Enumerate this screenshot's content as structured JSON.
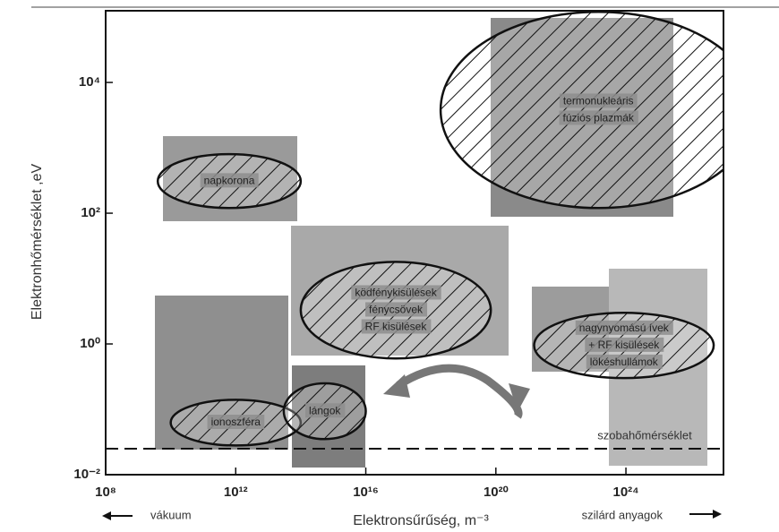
{
  "chart_data": {
    "type": "region",
    "x_label": "Elektronsűrűség, m⁻³",
    "y_label": "Elektronhőmérséklet ,eV",
    "x_log": true,
    "y_log": true,
    "xlim": [
      100000000,
      1e+27
    ],
    "ylim": [
      0.01,
      125000
    ],
    "xticks": [
      {
        "value": 100000000,
        "label": "10⁸"
      },
      {
        "value": 1000000000000,
        "label": "10¹²"
      },
      {
        "value": 1e+16,
        "label": "10¹⁶"
      },
      {
        "value": 1e+20,
        "label": "10²⁰"
      },
      {
        "value": 1e+24,
        "label": "10²⁴"
      }
    ],
    "yticks": [
      {
        "value": 0.01,
        "label": "10⁻²"
      },
      {
        "value": 1,
        "label": "10⁰"
      },
      {
        "value": 100,
        "label": "10²"
      },
      {
        "value": 10000,
        "label": "10⁴"
      }
    ],
    "regions": [
      {
        "lines": [
          "termonukleáris",
          "fúziós plazmák"
        ],
        "x": [
          2e+18,
          1e+28
        ],
        "y": [
          120,
          120000
        ]
      },
      {
        "lines": [
          "napkorona"
        ],
        "x": [
          4000000000,
          100000000000000
        ],
        "y": [
          120,
          800
        ]
      },
      {
        "lines": [
          "ködfénykisülések",
          "fénycsövek",
          "RF kisülések"
        ],
        "x": [
          100000000000000,
          7e+19
        ],
        "y": [
          0.6,
          18
        ]
      },
      {
        "lines": [
          "nagynyomású ívek",
          "+ RF kisülések",
          "lökéshullámok"
        ],
        "x": [
          1.5e+21,
          5e+26
        ],
        "y": [
          0.3,
          3
        ]
      },
      {
        "lines": [
          "ionoszféra"
        ],
        "x": [
          10000000000,
          100000000000000
        ],
        "y": [
          0.028,
          0.14
        ]
      },
      {
        "lines": [
          "lángok"
        ],
        "x": [
          30000000000000,
          1e+16
        ],
        "y": [
          0.035,
          0.25
        ]
      }
    ],
    "reference_line": {
      "text": "szobahőmérséklet",
      "y": 0.025
    },
    "x_left_note": "vákuum",
    "x_right_note": "szilárd anyagok"
  }
}
